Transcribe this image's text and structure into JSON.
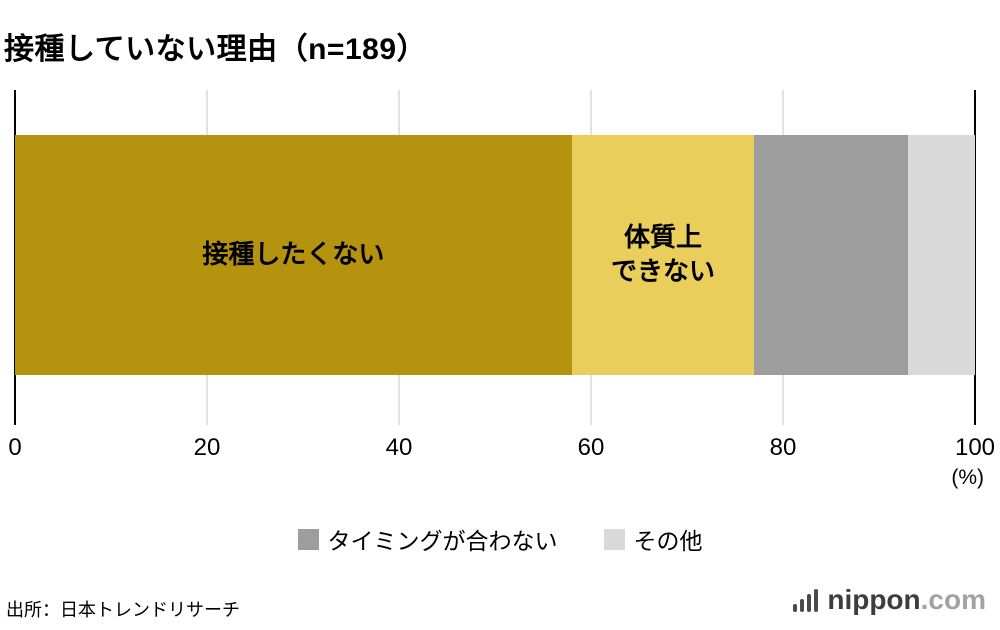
{
  "title": "接種していない理由（n=189）",
  "chart_data": {
    "type": "bar",
    "orientation": "horizontal-stacked",
    "title": "接種していない理由（n=189）",
    "categories": [
      "接種したくない",
      "体質上できない",
      "タイミングが合わない",
      "その他"
    ],
    "values": [
      58,
      19,
      16,
      7
    ],
    "colors": [
      "#b5930f",
      "#e9ce5c",
      "#9d9d9d",
      "#d9d9d9"
    ],
    "segment_labels": [
      "接種したくない",
      "体質上\nできない",
      "",
      ""
    ],
    "xlim": [
      0,
      100
    ],
    "x_ticks": [
      0,
      20,
      40,
      60,
      80,
      100
    ],
    "x_unit": "(%)",
    "grid": true,
    "legend_position": "bottom",
    "legend": [
      {
        "label": "タイミングが合わない",
        "color": "#9d9d9d"
      },
      {
        "label": "その他",
        "color": "#d9d9d9"
      }
    ]
  },
  "source": "出所：日本トレンドリサーチ",
  "logo": {
    "name": "nippon",
    "tld": ".com"
  }
}
